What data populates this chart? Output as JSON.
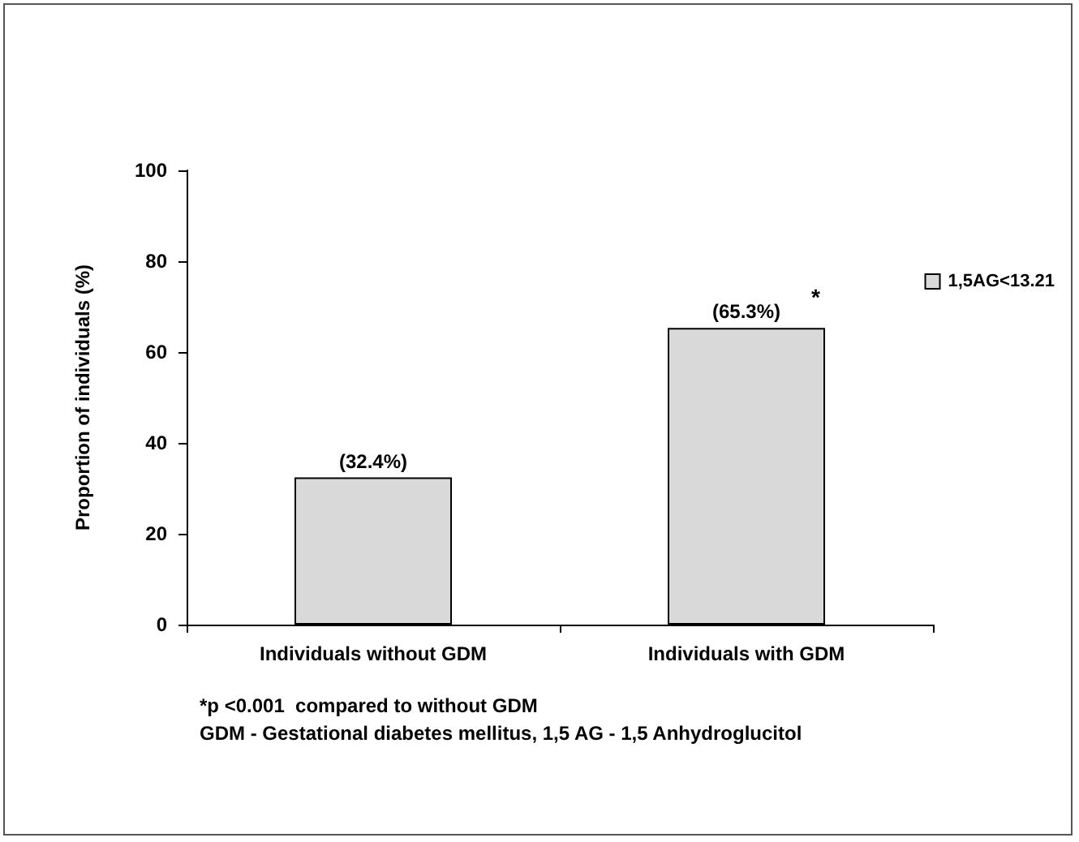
{
  "chart_data": {
    "type": "bar",
    "ylabel": "Proportion of individuals (%)",
    "categories": [
      "Individuals without GDM",
      "Individuals with GDM"
    ],
    "series": [
      {
        "name": "1,5AG<13.21",
        "color": "#d9d9d9",
        "values": [
          32.4,
          65.3
        ],
        "value_labels": [
          "(32.4%)",
          "(65.3%)"
        ]
      }
    ],
    "ylim": [
      0,
      100
    ],
    "yticks": [
      0,
      20,
      40,
      60,
      80,
      100
    ],
    "grid": false,
    "legend": "right",
    "annotations": [
      {
        "text": "*",
        "x": "Individuals with GDM",
        "y": 65.3
      },
      "*p <0.001  compared to without GDM",
      "GDM - Gestational diabetes mellitus, 1,5 AG - 1,5 Anhydroglucitol"
    ]
  }
}
